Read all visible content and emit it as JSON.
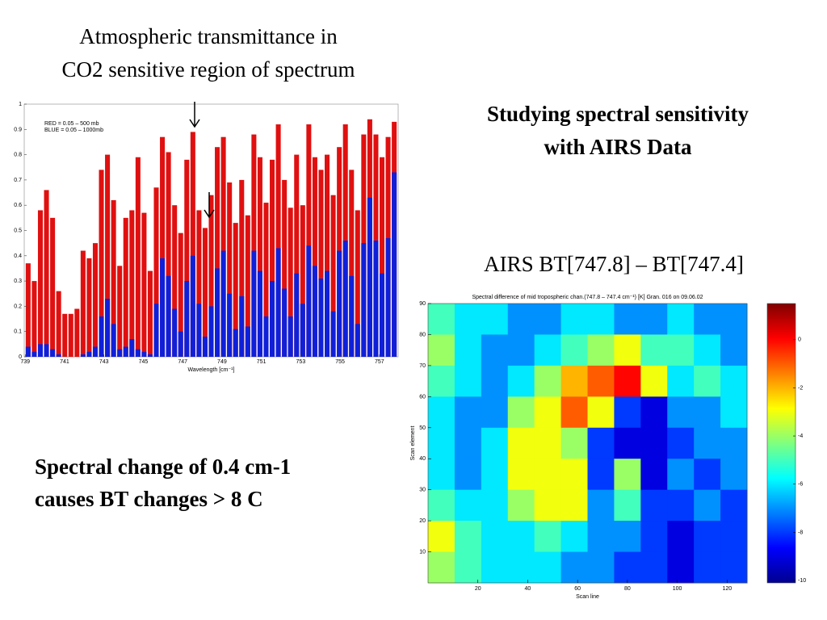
{
  "slide": {
    "heading": [
      "Studying spectral sensitivity",
      "with AIRS Data"
    ],
    "notes": [
      "Spectral change of 0.4 cm-1",
      "causes BT changes > 8 C"
    ]
  },
  "chart_data": [
    {
      "type": "bar",
      "title": [
        "Atmospheric transmittance in",
        "CO2 sensitive region of spectrum"
      ],
      "xlabel": "Wavelength [cm⁻¹]",
      "x": [
        739.15,
        739.46,
        739.77,
        740.08,
        740.39,
        740.7,
        741.01,
        741.32,
        741.63,
        741.94,
        742.25,
        742.56,
        742.87,
        743.18,
        743.49,
        743.8,
        744.11,
        744.42,
        744.73,
        745.04,
        745.35,
        745.66,
        745.97,
        746.28,
        746.59,
        746.9,
        747.21,
        747.52,
        747.83,
        748.14,
        748.45,
        748.76,
        749.07,
        749.38,
        749.69,
        750.0,
        750.31,
        750.62,
        750.93,
        751.24,
        751.55,
        751.86,
        752.17,
        752.48,
        752.79,
        753.1,
        753.41,
        753.72,
        754.03,
        754.34,
        754.65,
        754.96,
        755.27,
        755.58,
        755.89,
        756.2,
        756.51,
        756.82,
        757.13,
        757.44,
        757.75
      ],
      "series": [
        {
          "name": "RED  =  0.05 –  500 mb",
          "color": "#e01010",
          "values": [
            0.37,
            0.3,
            0.58,
            0.66,
            0.55,
            0.26,
            0.17,
            0.17,
            0.19,
            0.42,
            0.39,
            0.45,
            0.74,
            0.8,
            0.62,
            0.36,
            0.55,
            0.58,
            0.79,
            0.57,
            0.34,
            0.67,
            0.87,
            0.81,
            0.6,
            0.49,
            0.78,
            0.89,
            0.58,
            0.51,
            0.64,
            0.83,
            0.87,
            0.69,
            0.53,
            0.7,
            0.56,
            0.88,
            0.79,
            0.61,
            0.78,
            0.92,
            0.7,
            0.59,
            0.8,
            0.6,
            0.92,
            0.79,
            0.74,
            0.8,
            0.64,
            0.83,
            0.92,
            0.74,
            0.58,
            0.88,
            0.94,
            0.88,
            0.79,
            0.87,
            0.93
          ]
        },
        {
          "name": "BLUE  =  0.05 – 1000mb",
          "color": "#1020d8",
          "values": [
            0.04,
            0.02,
            0.05,
            0.05,
            0.03,
            0.01,
            0.0,
            0.0,
            0.0,
            0.01,
            0.02,
            0.04,
            0.16,
            0.23,
            0.13,
            0.03,
            0.04,
            0.07,
            0.03,
            0.02,
            0.01,
            0.21,
            0.39,
            0.32,
            0.19,
            0.1,
            0.3,
            0.4,
            0.21,
            0.08,
            0.2,
            0.35,
            0.42,
            0.25,
            0.11,
            0.24,
            0.12,
            0.42,
            0.34,
            0.16,
            0.3,
            0.43,
            0.27,
            0.16,
            0.33,
            0.21,
            0.44,
            0.36,
            0.31,
            0.34,
            0.18,
            0.42,
            0.46,
            0.32,
            0.13,
            0.45,
            0.63,
            0.46,
            0.33,
            0.47,
            0.73
          ]
        }
      ],
      "xlim": [
        738.95,
        757.95
      ],
      "xticks": [
        739,
        741,
        743,
        745,
        747,
        749,
        751,
        753,
        755,
        757
      ],
      "ylim": [
        0,
        1
      ],
      "yticks": [
        0,
        0.1,
        0.2,
        0.3,
        0.4,
        0.5,
        0.6,
        0.7,
        0.8,
        0.9,
        1
      ]
    },
    {
      "type": "heatmap",
      "heading": "AIRS BT[747.8] – BT[747.4]",
      "title": "Spectral difference of mid tropospheric  chan.(747.8 – 747.4 cm⁻¹)  [K]  Gran. 016 on 09.06.02",
      "xlabel": "Scan line",
      "ylabel": "Scan element",
      "xlim": [
        0,
        128
      ],
      "xticks": [
        20,
        40,
        60,
        80,
        100,
        120
      ],
      "ylim": [
        0,
        90
      ],
      "yticks": [
        10,
        20,
        30,
        40,
        50,
        60,
        70,
        80,
        90
      ],
      "zlim": [
        -10.1,
        1.5
      ],
      "zticks": [
        0,
        -2,
        -4,
        -6,
        -8,
        -10
      ],
      "z": [
        [
          -5,
          -6,
          -6,
          -7,
          -7,
          -6,
          -6,
          -7,
          -7,
          -6,
          -7,
          -7
        ],
        [
          -4,
          -6,
          -7,
          -7,
          -6,
          -5,
          -4,
          -3,
          -5,
          -5,
          -6,
          -7
        ],
        [
          -5,
          -6,
          -7,
          -6,
          -4,
          -2,
          -1,
          0,
          -3,
          -6,
          -5,
          -6
        ],
        [
          -6,
          -7,
          -7,
          -4,
          -3,
          -1,
          -3,
          -8,
          -9,
          -7,
          -7,
          -6
        ],
        [
          -6,
          -7,
          -6,
          -3,
          -3,
          -4,
          -8,
          -9,
          -9,
          -8,
          -7,
          -7
        ],
        [
          -6,
          -7,
          -6,
          -3,
          -3,
          -3,
          -8,
          -4,
          -9,
          -7,
          -8,
          -7
        ],
        [
          -5,
          -6,
          -6,
          -4,
          -3,
          -3,
          -7,
          -5,
          -8,
          -8,
          -7,
          -8
        ],
        [
          -3,
          -5,
          -6,
          -6,
          -5,
          -6,
          -7,
          -7,
          -8,
          -9,
          -8,
          -8
        ],
        [
          -4,
          -5,
          -6,
          -6,
          -6,
          -7,
          -7,
          -8,
          -8,
          -9,
          -8,
          -8
        ]
      ]
    }
  ]
}
